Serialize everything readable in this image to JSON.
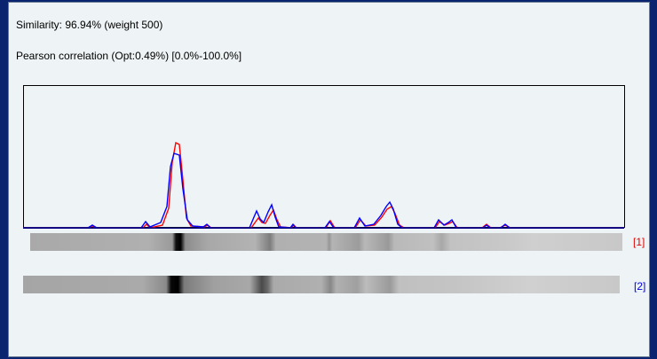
{
  "header": {
    "similarity": "Similarity: 96.94% (weight 500)",
    "correlation": "Pearson correlation (Opt:0.49%) [0.0%-100.0%]"
  },
  "lanes": [
    {
      "label": "[1]"
    },
    {
      "label": "[2]"
    }
  ]
}
